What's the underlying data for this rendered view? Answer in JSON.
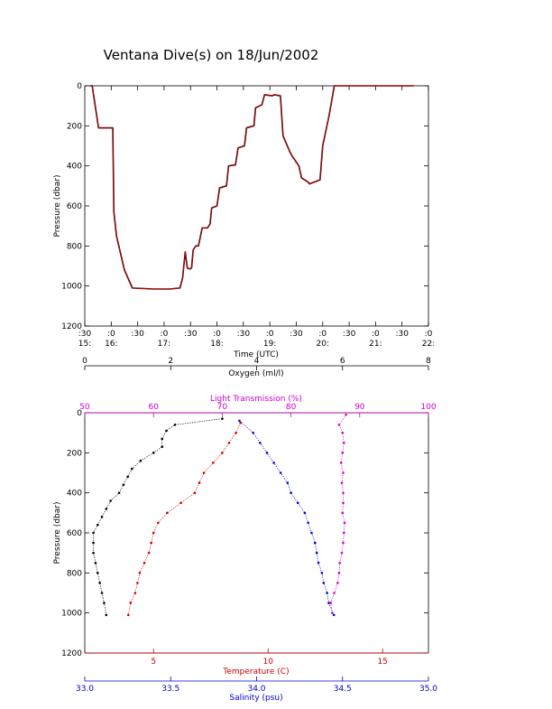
{
  "title": "Ventana Dive(s) on 18/Jun/2002",
  "colors": {
    "axis": "#000000",
    "trace": "#cc0000",
    "oxygen": "#000000",
    "light": "#cc00cc",
    "temperature": "#cc0000",
    "salinity": "#0000cc"
  },
  "chart_data": [
    {
      "type": "line",
      "title": "Ventana Dive(s) on 18/Jun/2002",
      "xlabel": "Time (UTC)",
      "ylabel": "Pressure (dbar)",
      "x_unit": "hours UTC",
      "xlim": [
        15.5,
        22.0
      ],
      "ylim": [
        1200,
        0
      ],
      "y_reversed": true,
      "grid": false,
      "x_ticks": [
        {
          "minute": ":30",
          "hour": "15:"
        },
        {
          "minute": ":0",
          "hour": "16:"
        },
        {
          "minute": ":30",
          "hour": ""
        },
        {
          "minute": ":0",
          "hour": "17:"
        },
        {
          "minute": ":30",
          "hour": ""
        },
        {
          "minute": ":0",
          "hour": "18:"
        },
        {
          "minute": ":30",
          "hour": ""
        },
        {
          "minute": ":0",
          "hour": "19:"
        },
        {
          "minute": ":30",
          "hour": ""
        },
        {
          "minute": ":0",
          "hour": "20:"
        },
        {
          "minute": ":30",
          "hour": ""
        },
        {
          "minute": ":0",
          "hour": "21:"
        },
        {
          "minute": ":30",
          "hour": ""
        },
        {
          "minute": ":0",
          "hour": "22:"
        }
      ],
      "y_ticks": [
        "0",
        "200",
        "400",
        "600",
        "800",
        "1000",
        "1200"
      ],
      "series": [
        {
          "x": [
            15.6,
            15.64,
            15.76,
            16.03,
            16.05,
            16.1,
            16.25,
            16.4,
            16.8,
            17.1,
            17.3,
            17.35,
            17.4,
            17.44,
            17.48,
            17.52,
            17.55,
            17.6,
            17.65,
            17.72,
            17.82,
            17.87,
            17.9,
            18.0,
            18.05,
            18.18,
            18.22,
            18.35,
            18.4,
            18.52,
            18.56,
            18.7,
            18.73,
            18.85,
            18.9,
            19.05,
            19.08,
            19.2,
            19.25,
            19.38,
            19.42,
            19.55,
            19.6,
            19.72,
            19.75,
            19.95,
            20.0,
            20.12,
            20.22,
            20.3,
            20.35,
            20.5,
            20.6,
            20.8,
            20.98,
            21.2,
            21.3,
            21.45,
            21.72
          ],
          "y": [
            0,
            0,
            210,
            210,
            630,
            750,
            920,
            1010,
            1015,
            1015,
            1010,
            960,
            830,
            910,
            915,
            910,
            820,
            800,
            800,
            710,
            710,
            690,
            610,
            600,
            510,
            500,
            400,
            395,
            310,
            300,
            210,
            200,
            110,
            95,
            45,
            50,
            45,
            50,
            250,
            330,
            350,
            400,
            460,
            480,
            490,
            470,
            300,
            150,
            0,
            0,
            0,
            0,
            0,
            0,
            0,
            0,
            0,
            0,
            0
          ]
        }
      ]
    },
    {
      "type": "scatter",
      "ylabel": "Pressure (dbar)",
      "ylim": [
        1200,
        0
      ],
      "y_reversed": true,
      "y_ticks": [
        "0",
        "200",
        "400",
        "600",
        "800",
        "1000",
        "1200"
      ],
      "axes": {
        "oxygen": {
          "label": "Oxygen (ml/l)",
          "lim": [
            0,
            8
          ],
          "ticks": [
            "0",
            "2",
            "4",
            "6",
            "8"
          ]
        },
        "light": {
          "label": "Light Transmission (%)",
          "lim": [
            50,
            100
          ],
          "ticks": [
            "50",
            "60",
            "70",
            "80",
            "90",
            "100"
          ]
        },
        "temperature": {
          "label": "Temperature (C)",
          "lim": [
            2,
            17
          ],
          "ticks": [
            "5",
            "10",
            "15"
          ]
        },
        "salinity": {
          "label": "Salinity (psu)",
          "lim": [
            33.0,
            35.0
          ],
          "ticks": [
            "33.0",
            "33.5",
            "34.0",
            "34.5",
            "35.0"
          ]
        }
      },
      "series": [
        {
          "axis": "oxygen",
          "pressure": [
            30,
            60,
            90,
            130,
            170,
            200,
            240,
            280,
            320,
            360,
            400,
            440,
            480,
            520,
            560,
            600,
            650,
            700,
            750,
            800,
            850,
            900,
            950,
            1010
          ],
          "values": [
            3.2,
            2.1,
            1.9,
            1.8,
            1.8,
            1.6,
            1.3,
            1.1,
            1.0,
            0.9,
            0.8,
            0.6,
            0.5,
            0.4,
            0.3,
            0.2,
            0.2,
            0.2,
            0.25,
            0.3,
            0.35,
            0.4,
            0.45,
            0.5
          ]
        },
        {
          "axis": "light",
          "pressure": [
            10,
            60,
            100,
            150,
            200,
            250,
            300,
            350,
            400,
            450,
            500,
            550,
            600,
            650,
            700,
            750,
            800,
            850,
            900,
            950,
            1000
          ],
          "values": [
            88,
            87,
            87.5,
            87.7,
            87.5,
            87.3,
            87.6,
            87.4,
            87.6,
            87.6,
            87.5,
            87.8,
            87.7,
            87.6,
            87.4,
            87.1,
            87.0,
            86.8,
            86.3,
            85.8,
            86.0
          ]
        },
        {
          "axis": "temperature",
          "pressure": [
            50,
            100,
            150,
            200,
            250,
            300,
            350,
            400,
            450,
            500,
            550,
            600,
            650,
            700,
            750,
            800,
            850,
            900,
            950,
            1010
          ],
          "values": [
            8.8,
            8.6,
            8.3,
            8.0,
            7.6,
            7.2,
            7.0,
            6.8,
            6.2,
            5.6,
            5.2,
            5.0,
            4.9,
            4.8,
            4.6,
            4.4,
            4.3,
            4.2,
            4.0,
            3.9
          ]
        },
        {
          "axis": "salinity",
          "pressure": [
            40,
            100,
            150,
            200,
            250,
            300,
            350,
            400,
            450,
            500,
            550,
            600,
            650,
            700,
            750,
            800,
            850,
            900,
            950,
            1010
          ],
          "values": [
            33.9,
            33.98,
            34.02,
            34.06,
            34.1,
            34.14,
            34.18,
            34.2,
            34.24,
            34.28,
            34.3,
            34.32,
            34.34,
            34.35,
            34.36,
            34.38,
            34.39,
            34.41,
            34.42,
            34.45
          ]
        }
      ]
    }
  ]
}
